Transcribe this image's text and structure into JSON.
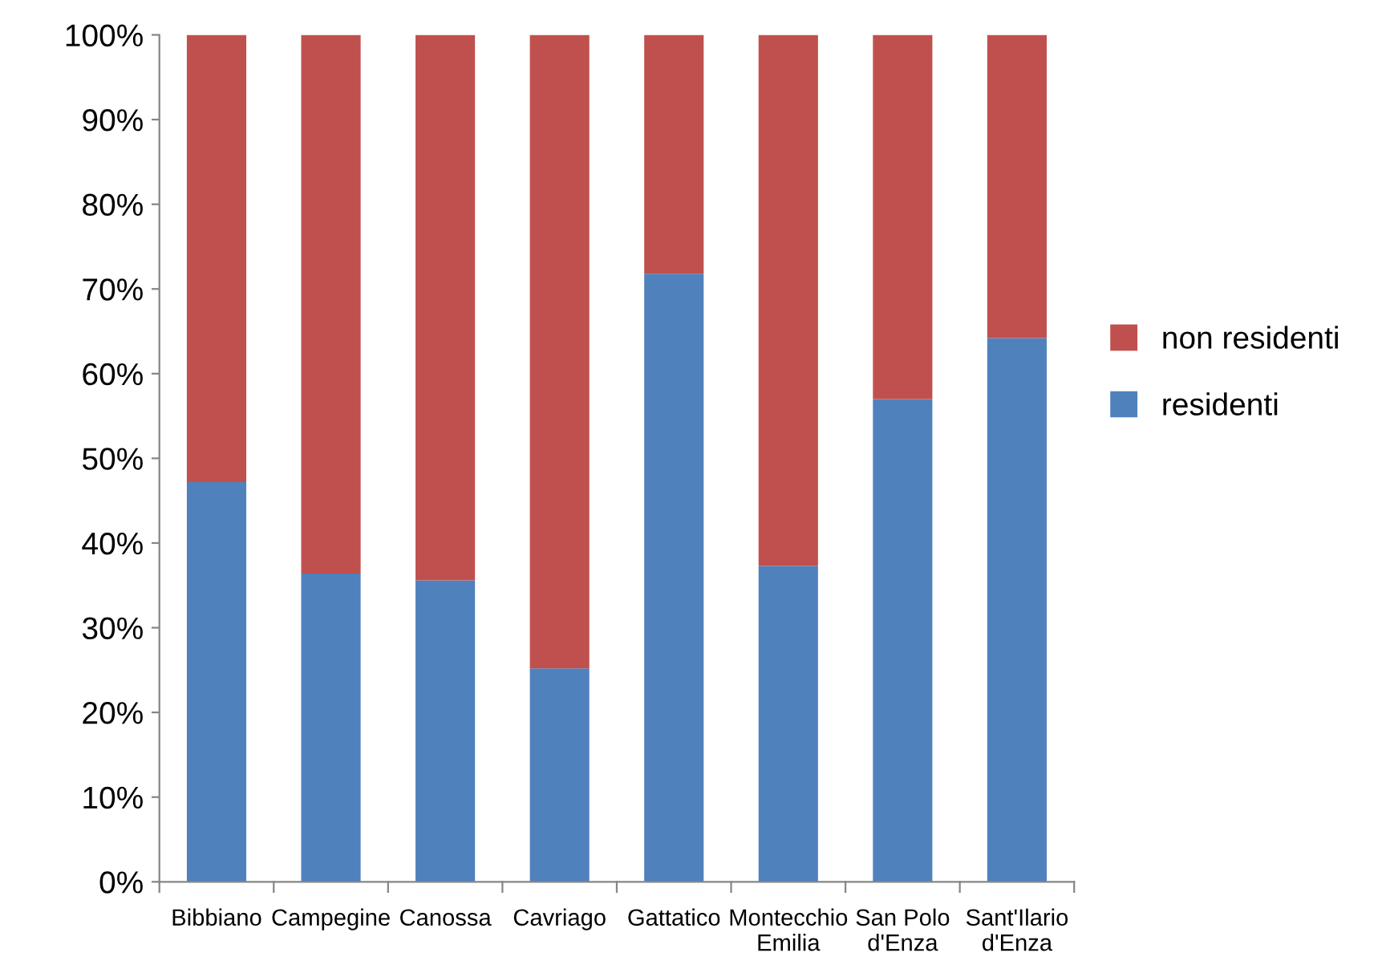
{
  "chart_data": {
    "type": "bar",
    "stacked": true,
    "categories": [
      "Bibbiano",
      "Campegine",
      "Canossa",
      "Cavriago",
      "Gattatico",
      "Montecchio\nEmilia",
      "San Polo\nd'Enza",
      "Sant'Ilario\nd'Enza"
    ],
    "series": [
      {
        "name": "residenti",
        "color": "#4f81bd",
        "values": [
          47.2,
          36.4,
          35.6,
          25.2,
          71.8,
          37.3,
          57.0,
          64.2
        ]
      },
      {
        "name": "non residenti",
        "color": "#c0504d",
        "values": [
          52.8,
          63.6,
          64.4,
          74.8,
          28.2,
          62.7,
          43.0,
          35.8
        ]
      }
    ],
    "ylim": [
      0,
      100
    ],
    "yticks": [
      {
        "value": 0,
        "label": "0%"
      },
      {
        "value": 10,
        "label": "10%"
      },
      {
        "value": 20,
        "label": "20%"
      },
      {
        "value": 30,
        "label": "30%"
      },
      {
        "value": 40,
        "label": "40%"
      },
      {
        "value": 50,
        "label": "50%"
      },
      {
        "value": 60,
        "label": "60%"
      },
      {
        "value": 70,
        "label": "70%"
      },
      {
        "value": 80,
        "label": "80%"
      },
      {
        "value": 90,
        "label": "90%"
      },
      {
        "value": 100,
        "label": "100%"
      }
    ],
    "grid": false,
    "legend": "right"
  }
}
